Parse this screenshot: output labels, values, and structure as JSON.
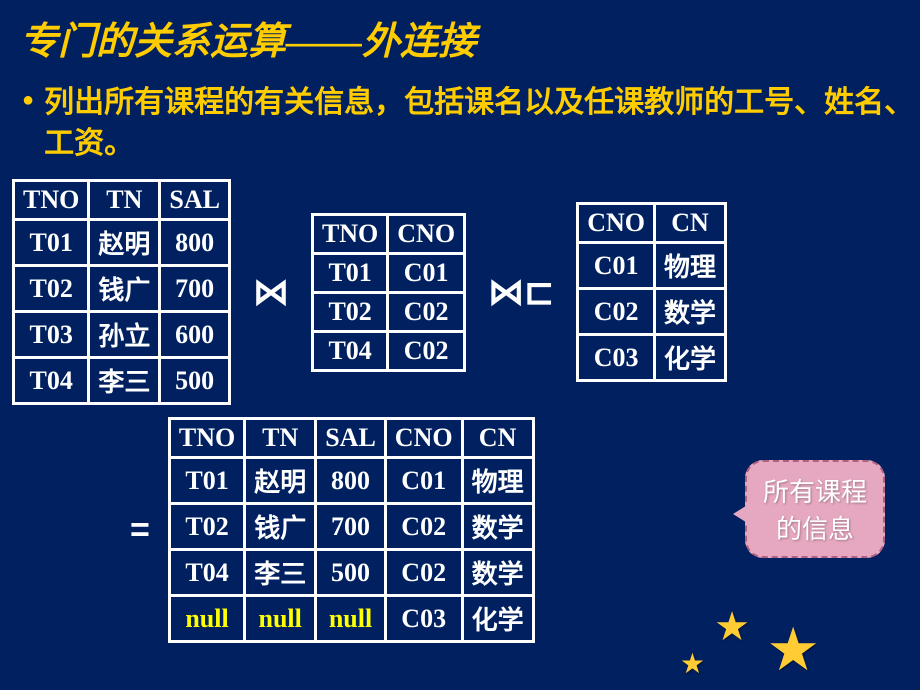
{
  "title": "专门的关系运算——外连接",
  "description": "列出所有课程的有关信息，包括课名以及任课教师的工号、姓名、工资。",
  "operators": {
    "join": "⋈",
    "outerJoinRight": "⋈⊏",
    "equals": "="
  },
  "table1": {
    "headers": [
      "TNO",
      "TN",
      "SAL"
    ],
    "rows": [
      [
        "T01",
        "赵明",
        "800"
      ],
      [
        "T02",
        "钱广",
        "700"
      ],
      [
        "T03",
        "孙立",
        "600"
      ],
      [
        "T04",
        "李三",
        "500"
      ]
    ]
  },
  "table2": {
    "headers": [
      "TNO",
      "CNO"
    ],
    "rows": [
      [
        "T01",
        "C01"
      ],
      [
        "T02",
        "C02"
      ],
      [
        "T04",
        "C02"
      ]
    ]
  },
  "table3": {
    "headers": [
      "CNO",
      "CN"
    ],
    "rows": [
      [
        "C01",
        "物理"
      ],
      [
        "C02",
        "数学"
      ],
      [
        "C03",
        "化学"
      ]
    ]
  },
  "result": {
    "headers": [
      "TNO",
      "TN",
      "SAL",
      "CNO",
      "CN"
    ],
    "rows": [
      [
        "T01",
        "赵明",
        "800",
        "C01",
        "物理"
      ],
      [
        "T02",
        "钱广",
        "700",
        "C02",
        "数学"
      ],
      [
        "T04",
        "李三",
        "500",
        "C02",
        "数学"
      ],
      [
        "null",
        "null",
        "null",
        "C03",
        "化学"
      ]
    ],
    "nullColumns": [
      0,
      1,
      2
    ],
    "nullRow": 3
  },
  "callout": "所有课程\n的信息",
  "colors": {
    "background": "#002060",
    "title": "#ffcc00",
    "border": "#ffffff",
    "text": "#ffffff",
    "null": "#ffff00",
    "callout_bg": "#e6a8c0",
    "star": "#ffcc33"
  }
}
